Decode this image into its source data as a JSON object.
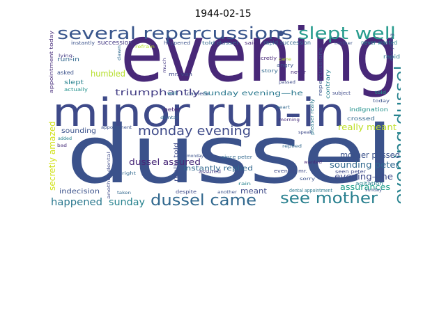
{
  "title": "1944-02-15",
  "words": [
    {
      "text": "evening",
      "c": "#482878"
    },
    {
      "text": "dussel",
      "c": "#3b528b"
    },
    {
      "text": "minor run-in",
      "c": "#3e4a89"
    },
    {
      "text": "several repercussions",
      "c": "#39568c"
    },
    {
      "text": "slept well",
      "c": "#2a9d8f"
    },
    {
      "text": "evening dussel",
      "c": "#26828e"
    },
    {
      "text": "monday evening",
      "c": "#3e4a89"
    },
    {
      "text": "dussel came",
      "c": "#31688e"
    },
    {
      "text": "see mother",
      "c": "#277f8e"
    },
    {
      "text": "happened",
      "c": "#2a788e"
    },
    {
      "text": "sunday",
      "c": "#26828e"
    },
    {
      "text": "triumphantly",
      "c": "#433e85"
    },
    {
      "text": "humbled",
      "c": "#b5de2b"
    },
    {
      "text": "dussel assured",
      "c": "#482878"
    },
    {
      "text": "really meant",
      "c": "#bddf26"
    },
    {
      "text": "mother passed",
      "c": "#3b528b"
    },
    {
      "text": "sounding peter",
      "c": "#31688e"
    },
    {
      "text": "evening—he",
      "c": "#3e4a89"
    },
    {
      "text": "assurances",
      "c": "#1f9e89"
    },
    {
      "text": "sunday evening—he",
      "c": "#2a788e"
    },
    {
      "text": "secretly amazed",
      "c": "#d2e21b"
    },
    {
      "text": "indecision",
      "c": "#3b528b"
    },
    {
      "text": "meant",
      "c": "#3e4a89"
    },
    {
      "text": "sounding",
      "c": "#3b528b"
    },
    {
      "text": "succession",
      "c": "#443983"
    },
    {
      "text": "instantly replied",
      "c": "#31688e"
    },
    {
      "text": "really told",
      "c": "#3e4a89"
    },
    {
      "text": "appointment today",
      "c": "#472d7b"
    },
    {
      "text": "instantly",
      "c": "#3b528b"
    },
    {
      "text": "run-in",
      "c": "#31688e"
    },
    {
      "text": "asked",
      "c": "#3b528b"
    },
    {
      "text": "slept",
      "c": "#26828e"
    },
    {
      "text": "actually",
      "c": "#21918c"
    },
    {
      "text": "lying",
      "c": "#443983"
    },
    {
      "text": "refrain",
      "c": "#b5de2b"
    },
    {
      "text": "happened",
      "c": "#3b528b"
    },
    {
      "text": "told dussel",
      "c": "#31688e"
    },
    {
      "text": "said",
      "c": "#482878"
    },
    {
      "text": "rapid succession",
      "c": "#31688e"
    },
    {
      "text": "mother",
      "c": "#3b528b"
    },
    {
      "text": "never wanted",
      "c": "#26828e"
    },
    {
      "text": "rapid",
      "c": "#2a788e"
    },
    {
      "text": "secretly",
      "c": "#482878"
    },
    {
      "text": "angry",
      "c": "#3b528b"
    },
    {
      "text": "never",
      "c": "#472d7b"
    },
    {
      "text": "story",
      "c": "#31688e"
    },
    {
      "text": "mr. van",
      "c": "#3e4a89"
    },
    {
      "text": "repercussions",
      "c": "#3b528b"
    },
    {
      "text": "contrary",
      "c": "#26828e"
    },
    {
      "text": "subject",
      "c": "#3e4a89"
    },
    {
      "text": "told",
      "c": "#1f9e89"
    },
    {
      "text": "today",
      "c": "#3b528b"
    },
    {
      "text": "indignation",
      "c": "#21918c"
    },
    {
      "text": "crossed",
      "c": "#31688e"
    },
    {
      "text": "seen peter",
      "c": "#3e4a89"
    },
    {
      "text": "wanted",
      "c": "#482878"
    },
    {
      "text": "agitation",
      "c": "#26828e"
    },
    {
      "text": "sunday",
      "c": "#3b528b"
    },
    {
      "text": "dental appointment",
      "c": "#2a788e"
    },
    {
      "text": "morning",
      "c": "#472d7b"
    },
    {
      "text": "sorry",
      "c": "#3b528b"
    },
    {
      "text": "evening mr.",
      "c": "#3e4a89"
    },
    {
      "text": "since peter",
      "c": "#31688e"
    },
    {
      "text": "another",
      "c": "#3b528b"
    },
    {
      "text": "rain",
      "c": "#26828e"
    },
    {
      "text": "despite",
      "c": "#3e4a89"
    },
    {
      "text": "taken",
      "c": "#31688e"
    },
    {
      "text": "camera",
      "c": "#3b528b"
    },
    {
      "text": "peter",
      "c": "#482878"
    },
    {
      "text": "dental",
      "c": "#31688e"
    },
    {
      "text": "assured",
      "c": "#443983"
    },
    {
      "text": "wish",
      "c": "#3b528b"
    },
    {
      "text": "right",
      "c": "#31688e"
    },
    {
      "text": "another dental",
      "c": "#3e4a89"
    },
    {
      "text": "appointment",
      "c": "#3b528b"
    },
    {
      "text": "added",
      "c": "#26828e"
    },
    {
      "text": "bad",
      "c": "#472d7b"
    },
    {
      "text": "rage",
      "c": "#3b528b"
    },
    {
      "text": "heart",
      "c": "#31688e"
    },
    {
      "text": "passed",
      "c": "#3e4a89"
    },
    {
      "text": "much",
      "c": "#443983"
    },
    {
      "text": "dawn",
      "c": "#31688e"
    },
    {
      "text": "well",
      "c": "#26828e"
    },
    {
      "text": "monday",
      "c": "#3b528b"
    },
    {
      "text": "came",
      "c": "#b5de2b"
    },
    {
      "text": "speak",
      "c": "#3e4a89"
    },
    {
      "text": "replied",
      "c": "#31688e"
    },
    {
      "text": "pleaser really",
      "c": "#2a788e"
    },
    {
      "text": "everything",
      "c": "#3b528b"
    }
  ]
}
